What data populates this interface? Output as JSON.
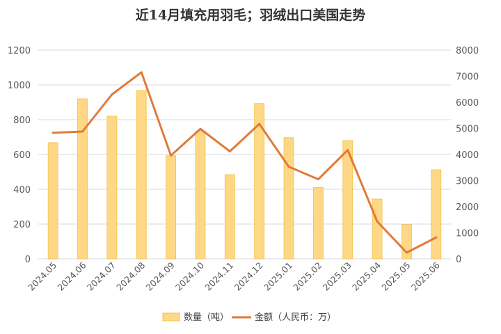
{
  "chart_data": {
    "type": "bar+line",
    "title": "近14月填充用羽毛；羽绒出口美国走势",
    "categories": [
      "2024.05",
      "2024.06",
      "2024.07",
      "2024.08",
      "2024.09",
      "2024.10",
      "2024.11",
      "2024.12",
      "2025.01",
      "2025.02",
      "2025.03",
      "2025.04",
      "2025.05",
      "2025.06"
    ],
    "series": [
      {
        "name": "数量（吨）",
        "type": "bar",
        "axis": "left",
        "color": "#FFD885",
        "values": [
          668,
          920,
          820,
          968,
          593,
          735,
          484,
          893,
          697,
          411,
          680,
          344,
          197,
          512
        ]
      },
      {
        "name": "金额（人民币：万）",
        "type": "line",
        "axis": "right",
        "color": "#E07B39",
        "values": [
          4830,
          4880,
          6300,
          7150,
          3960,
          4980,
          4120,
          5170,
          3530,
          3050,
          4170,
          1430,
          240,
          820
        ]
      }
    ],
    "y_left": {
      "min": 0,
      "max": 1200,
      "ticks": [
        "0",
        "200",
        "400",
        "600",
        "800",
        "1000",
        "1200"
      ]
    },
    "y_right": {
      "min": 0,
      "max": 8000,
      "ticks": [
        "0",
        "1000",
        "2000",
        "3000",
        "4000",
        "5000",
        "6000",
        "7000",
        "8000"
      ]
    },
    "grid": true,
    "legend_position": "bottom"
  }
}
